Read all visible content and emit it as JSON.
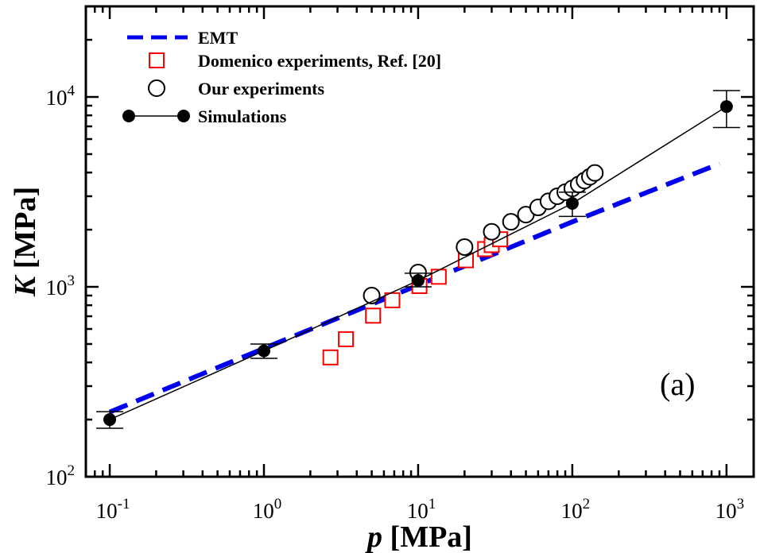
{
  "chart_data": {
    "type": "scatter",
    "xscale": "log",
    "yscale": "log",
    "xlim": [
      0.07,
      1500
    ],
    "ylim": [
      100,
      30000
    ],
    "xlabel": {
      "var": "p",
      "unit": "[MPa]"
    },
    "ylabel": {
      "var": "K",
      "unit": "[MPa]"
    },
    "panel_label": "(a)",
    "x_ticks": [
      {
        "value": 0.1,
        "base": "10",
        "exp": "-1"
      },
      {
        "value": 1,
        "base": "10",
        "exp": "0"
      },
      {
        "value": 10,
        "base": "10",
        "exp": "1"
      },
      {
        "value": 100,
        "base": "10",
        "exp": "2"
      },
      {
        "value": 1000,
        "base": "10",
        "exp": "3"
      }
    ],
    "y_ticks": [
      {
        "value": 100,
        "base": "10",
        "exp": "2"
      },
      {
        "value": 1000,
        "base": "10",
        "exp": "3"
      },
      {
        "value": 10000,
        "base": "10",
        "exp": "4"
      }
    ],
    "series": [
      {
        "name": "EMT",
        "style": "dashed-line",
        "color": "#0000ee",
        "x": [
          0.1,
          1,
          10,
          100,
          900
        ],
        "y": [
          219,
          474,
          1020,
          2200,
          4450
        ]
      },
      {
        "name": "Domenico experiments, Ref. [20]",
        "style": "open-square",
        "color": "#ff0000",
        "x": [
          2.7,
          3.4,
          5.1,
          6.8,
          10.2,
          13.6,
          20.4,
          27.2,
          30,
          34
        ],
        "y": [
          425,
          530,
          705,
          850,
          1010,
          1130,
          1380,
          1580,
          1660,
          1780
        ]
      },
      {
        "name": "Our experiments",
        "style": "open-circle",
        "color": "#000000",
        "x": [
          5,
          10,
          20,
          30,
          40,
          50,
          60,
          70,
          80,
          90,
          100,
          110,
          120,
          130,
          140
        ],
        "y": [
          900,
          1190,
          1620,
          1950,
          2200,
          2400,
          2620,
          2820,
          3000,
          3150,
          3300,
          3460,
          3630,
          3800,
          3980
        ]
      },
      {
        "name": "Simulations",
        "style": "filled-circle-line",
        "color": "#000000",
        "x": [
          0.1,
          1,
          10,
          100,
          1000
        ],
        "y": [
          200,
          460,
          1080,
          2750,
          8900
        ],
        "err_low": [
          180,
          420,
          1000,
          2350,
          6900
        ],
        "err_high": [
          220,
          500,
          1180,
          3150,
          10800
        ]
      }
    ]
  }
}
